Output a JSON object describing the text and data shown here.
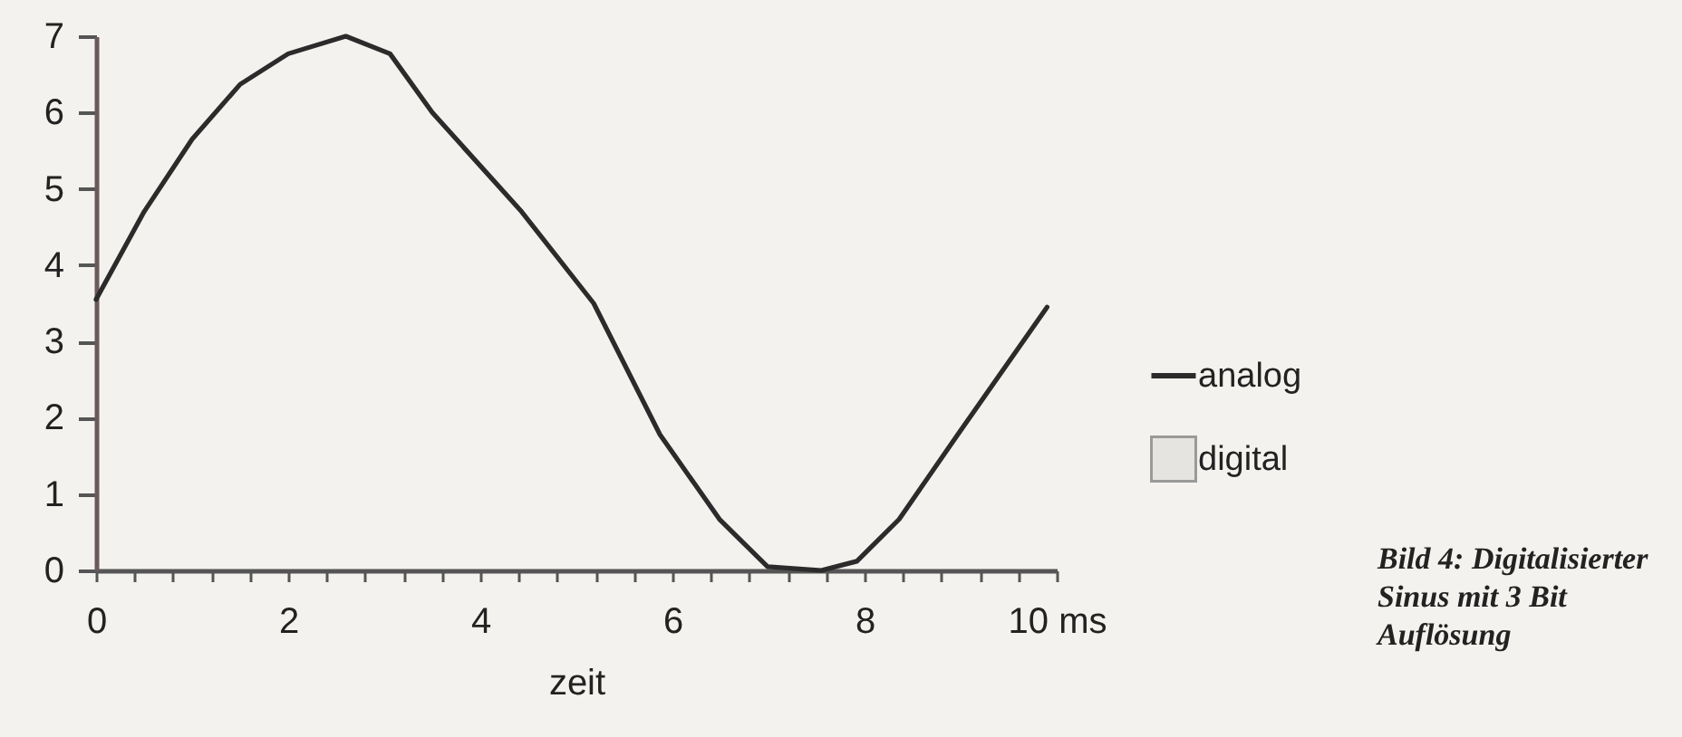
{
  "chart_data": {
    "type": "line",
    "xlabel": "zeit",
    "annotations": [
      "Bild 4: Digitalisierter Sinus mit 3 Bit Auflösung"
    ],
    "x": [
      0,
      0.5,
      1,
      1.5,
      2,
      2.6,
      3.06,
      3.5,
      4.43,
      5.18,
      5.87,
      6.49,
      6.99,
      7.55,
      7.92,
      8.36,
      8.97,
      9.9
    ],
    "series": [
      {
        "name": "analog",
        "color": "#2b2b2b",
        "values": [
          3.55,
          4.7,
          5.65,
          6.37,
          6.77,
          7.0,
          6.77,
          6.0,
          4.7,
          3.5,
          1.78,
          0.67,
          0.05,
          0,
          0.12,
          0.67,
          1.78,
          3.45
        ]
      },
      {
        "name": "digital",
        "color": "#9a9a9a",
        "values": [
          null,
          null,
          null,
          null,
          null,
          null,
          null,
          null,
          null,
          null,
          null,
          null,
          null,
          null,
          null,
          null,
          null,
          null
        ]
      }
    ],
    "xlim": [
      0,
      10
    ],
    "xticks": [
      0,
      {
        "value": 0.4,
        "label": null
      },
      {
        "value": 0.8,
        "label": null
      },
      {
        "value": 1.2,
        "label": null
      },
      {
        "value": 1.6,
        "label": null
      },
      2,
      {
        "value": 2.4,
        "label": null
      },
      {
        "value": 2.8,
        "label": null
      },
      {
        "value": 3.2,
        "label": null
      },
      {
        "value": 3.6,
        "label": null
      },
      4,
      {
        "value": 4.4,
        "label": null
      },
      {
        "value": 4.8,
        "label": null
      },
      {
        "value": 5.2,
        "label": null
      },
      {
        "value": 5.6,
        "label": null
      },
      6,
      {
        "value": 6.4,
        "label": null
      },
      {
        "value": 6.8,
        "label": null
      },
      {
        "value": 7.2,
        "label": null
      },
      {
        "value": 7.6,
        "label": null
      },
      8,
      {
        "value": 8.4,
        "label": null
      },
      {
        "value": 8.8,
        "label": null
      },
      {
        "value": 9.2,
        "label": null
      },
      {
        "value": 9.6,
        "label": null
      },
      {
        "value": 10,
        "label": "10 ms"
      }
    ],
    "ylim": [
      0,
      7
    ],
    "yticks": [
      0,
      1,
      2,
      3,
      4,
      5,
      6,
      7
    ],
    "grid": false,
    "legend": "right",
    "marker": "none",
    "line_style": "solid"
  }
}
